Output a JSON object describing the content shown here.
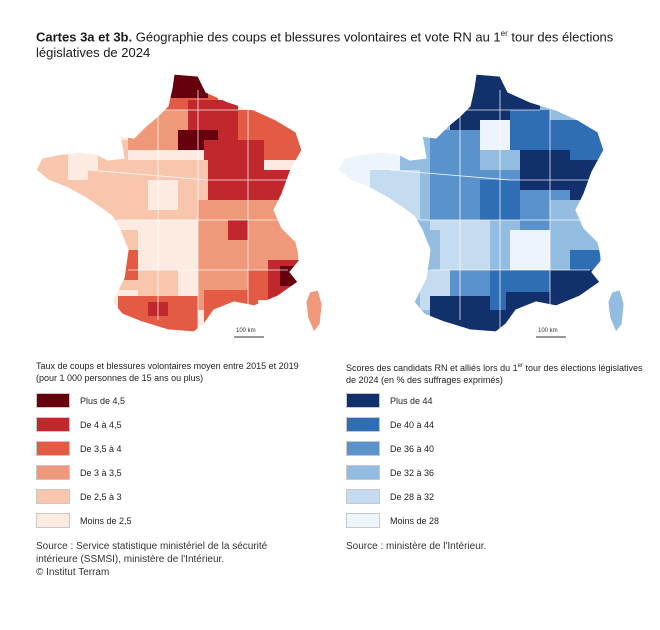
{
  "title": {
    "prefix": "Cartes 3a et 3b.",
    "text_before_sup": " Géographie des coups et blessures volontaires et vote RN au 1",
    "sup": "er",
    "text_after_sup": " tour des élections",
    "line2": "législatives de 2024"
  },
  "map_a": {
    "scale_label": "100 km",
    "legend_title_line1": "Taux de coups et blessures volontaires moyen entre 2015 et 2019",
    "legend_title_line2": "(pour 1 000 personnes de 15 ans ou plus)",
    "legend": [
      {
        "label": "Plus de 4,5",
        "color": "#67000d"
      },
      {
        "label": "De 4 à 4,5",
        "color": "#c0282d"
      },
      {
        "label": "De 3,5 à 4",
        "color": "#e35b45"
      },
      {
        "label": "De 3 à 3,5",
        "color": "#f0987a"
      },
      {
        "label": "De 2,5 à 3",
        "color": "#f8c6ad"
      },
      {
        "label": "Moins de 2,5",
        "color": "#fdebe2"
      }
    ],
    "source_line1": "Source : Service statistique ministériel de la sécurité",
    "source_line2": "intérieure (SSMSI), ministère de l'Intérieur."
  },
  "map_b": {
    "scale_label": "100 km",
    "legend_title_line1_a": "Scores des candidats RN et alliés lors du 1",
    "legend_title_sup": "er",
    "legend_title_line1_b": " tour des élections législatives",
    "legend_title_line2": "de 2024 (en % des suffrages exprimés)",
    "legend": [
      {
        "label": "Plus de 44",
        "color": "#12306b"
      },
      {
        "label": "De 40 à 44",
        "color": "#2f6db5"
      },
      {
        "label": "De 36 à 40",
        "color": "#5a92cc"
      },
      {
        "label": "De 32 à 36",
        "color": "#93bde0"
      },
      {
        "label": "De 28 à 32",
        "color": "#c5dbf0"
      },
      {
        "label": "Moins de 28",
        "color": "#eef4fb"
      }
    ],
    "source_line1": "Source : ministère de l'Intérieur."
  },
  "copyright": "© Institut Terram"
}
